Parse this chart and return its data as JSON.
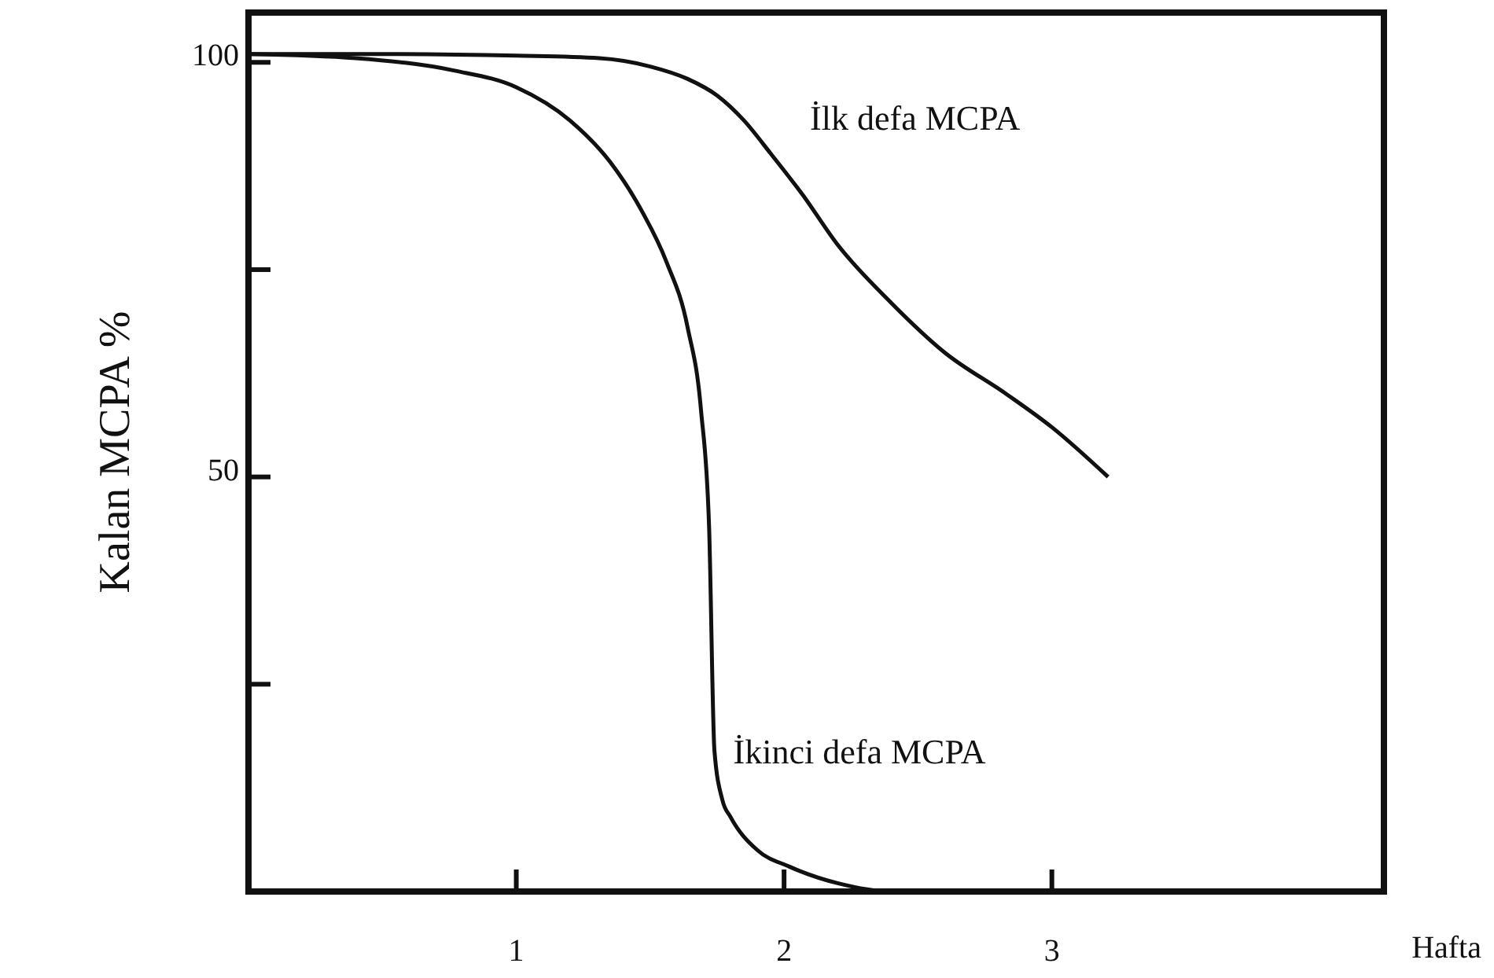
{
  "chart_data": {
    "type": "line",
    "xlabel": "Hafta",
    "ylabel": "Kalan MCPA %",
    "xlim": [
      0,
      4.24
    ],
    "ylim": [
      0,
      106
    ],
    "xticks": [
      1,
      2,
      3
    ],
    "yticks": [
      {
        "value": 25,
        "label": null
      },
      50,
      {
        "value": 75,
        "label": null
      },
      100
    ],
    "grid": false,
    "legend": false,
    "marker": "none",
    "line_style": "solid",
    "series": [
      {
        "name": "İlk defa MCPA",
        "color": "#111111",
        "x": [
          0,
          0.5,
          1,
          1.31,
          1.5,
          1.64,
          1.75,
          1.85,
          1.95,
          2.07,
          2.2,
          2.4,
          2.6,
          2.83,
          3.0,
          3.21
        ],
        "values": [
          101,
          101,
          100.8,
          100.5,
          99.5,
          98,
          96,
          93,
          89,
          84,
          78,
          71,
          65,
          60,
          56,
          50
        ]
      },
      {
        "name": "İkinci defa MCPA",
        "color": "#111111",
        "x": [
          0,
          0.4,
          0.77,
          1.0,
          1.2,
          1.35,
          1.47,
          1.56,
          1.64,
          1.69,
          1.72,
          1.74,
          1.77,
          1.8,
          1.9,
          2.02,
          2.2,
          2.4,
          2.7,
          3.0
        ],
        "values": [
          101,
          100.5,
          99,
          97,
          93,
          88,
          82,
          76,
          68,
          58,
          44,
          17,
          11,
          9,
          5,
          3,
          1,
          0,
          0,
          0
        ]
      }
    ]
  }
}
